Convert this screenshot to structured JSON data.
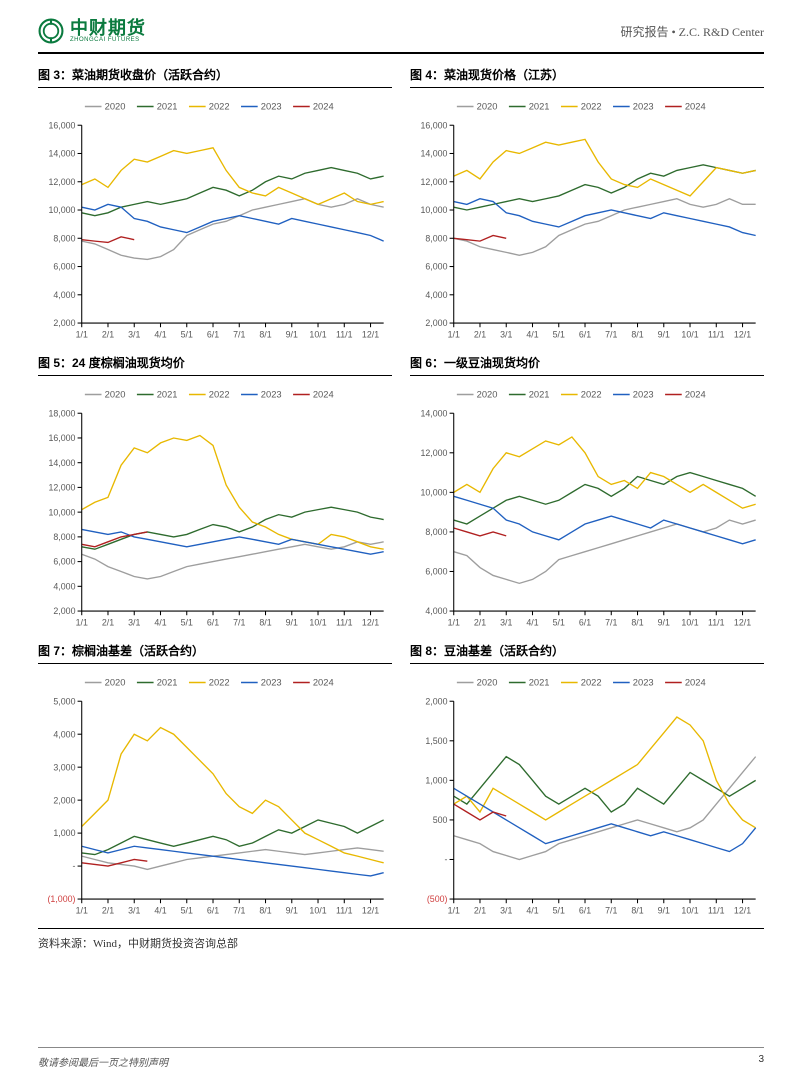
{
  "header": {
    "logo_cn": "中财期货",
    "logo_en": "ZHONGCAI FUTURES",
    "logo_color": "#0a7a3e",
    "right_text": "研究报告 • Z.C.  R&D Center"
  },
  "colors": {
    "line": {
      "2020": "#9e9e9e",
      "2021": "#2e6b2e",
      "2022": "#e8b800",
      "2023": "#2060c0",
      "2024": "#b02020"
    },
    "axis": "#000",
    "grid": "#e0e0e0",
    "tick": "#595959",
    "neg": "#d04040"
  },
  "legend_years": [
    "2020",
    "2021",
    "2022",
    "2023",
    "2024"
  ],
  "xticks": [
    "1/1",
    "2/1",
    "3/1",
    "4/1",
    "5/1",
    "6/1",
    "7/1",
    "8/1",
    "9/1",
    "10/1",
    "11/1",
    "12/1"
  ],
  "font": {
    "legend_size": 9,
    "tick_size": 8.5,
    "title_size": 12
  },
  "charts": [
    {
      "id": "c3",
      "title": "图 3：菜油期货收盘价（活跃合约）",
      "ylim": [
        2000,
        16000
      ],
      "ystep": 2000,
      "yfmt": "comma",
      "series": {
        "2020": [
          7800,
          7600,
          7200,
          6800,
          6600,
          6500,
          6700,
          7200,
          8200,
          8600,
          9000,
          9200,
          9600,
          10000,
          10200,
          10400,
          10600,
          10800,
          10400,
          10200,
          10400,
          10800,
          10400,
          10200
        ],
        "2021": [
          9800,
          9600,
          9800,
          10200,
          10400,
          10600,
          10400,
          10600,
          10800,
          11200,
          11600,
          11400,
          11000,
          11400,
          12000,
          12400,
          12200,
          12600,
          12800,
          13000,
          12800,
          12600,
          12200,
          12400
        ],
        "2022": [
          11800,
          12200,
          11600,
          12800,
          13600,
          13400,
          13800,
          14200,
          14000,
          14200,
          14400,
          12800,
          11600,
          11200,
          11000,
          11600,
          11200,
          10800,
          10400,
          10800,
          11200,
          10600,
          10400,
          10600
        ],
        "2023": [
          10200,
          10000,
          10400,
          10200,
          9400,
          9200,
          8800,
          8600,
          8400,
          8800,
          9200,
          9400,
          9600,
          9400,
          9200,
          9000,
          9400,
          9200,
          9000,
          8800,
          8600,
          8400,
          8200,
          7800
        ],
        "2024": [
          7900,
          7800,
          7700,
          8100,
          7900
        ]
      }
    },
    {
      "id": "c4",
      "title": "图 4：菜油现货价格（江苏）",
      "ylim": [
        2000,
        16000
      ],
      "ystep": 2000,
      "yfmt": "comma",
      "series": {
        "2020": [
          8000,
          7800,
          7400,
          7200,
          7000,
          6800,
          7000,
          7400,
          8200,
          8600,
          9000,
          9200,
          9600,
          10000,
          10200,
          10400,
          10600,
          10800,
          10400,
          10200,
          10400,
          10800,
          10400,
          10400
        ],
        "2021": [
          10200,
          10000,
          10200,
          10400,
          10600,
          10800,
          10600,
          10800,
          11000,
          11400,
          11800,
          11600,
          11200,
          11600,
          12200,
          12600,
          12400,
          12800,
          13000,
          13200,
          13000,
          12800,
          12600,
          12800
        ],
        "2022": [
          12400,
          12800,
          12200,
          13400,
          14200,
          14000,
          14400,
          14800,
          14600,
          14800,
          15000,
          13400,
          12200,
          11800,
          11600,
          12200,
          11800,
          11400,
          11000,
          12000,
          13000,
          12800,
          12600,
          12800
        ],
        "2023": [
          10600,
          10400,
          10800,
          10600,
          9800,
          9600,
          9200,
          9000,
          8800,
          9200,
          9600,
          9800,
          10000,
          9800,
          9600,
          9400,
          9800,
          9600,
          9400,
          9200,
          9000,
          8800,
          8400,
          8200
        ],
        "2024": [
          8000,
          7900,
          7800,
          8200,
          8000
        ]
      }
    },
    {
      "id": "c5",
      "title": "图 5：24 度棕榈油现货均价",
      "ylim": [
        2000,
        18000
      ],
      "ystep": 2000,
      "yfmt": "comma",
      "series": {
        "2020": [
          6600,
          6200,
          5600,
          5200,
          4800,
          4600,
          4800,
          5200,
          5600,
          5800,
          6000,
          6200,
          6400,
          6600,
          6800,
          7000,
          7200,
          7400,
          7200,
          7000,
          7200,
          7600,
          7400,
          7600
        ],
        "2021": [
          7200,
          7000,
          7400,
          7800,
          8200,
          8400,
          8200,
          8000,
          8200,
          8600,
          9000,
          8800,
          8400,
          8800,
          9400,
          9800,
          9600,
          10000,
          10200,
          10400,
          10200,
          10000,
          9600,
          9400
        ],
        "2022": [
          10200,
          10800,
          11200,
          13800,
          15200,
          14800,
          15600,
          16000,
          15800,
          16200,
          15400,
          12200,
          10400,
          9200,
          8800,
          8200,
          7800,
          7600,
          7400,
          8200,
          8000,
          7600,
          7200,
          7000
        ],
        "2023": [
          8600,
          8400,
          8200,
          8400,
          8000,
          7800,
          7600,
          7400,
          7200,
          7400,
          7600,
          7800,
          8000,
          7800,
          7600,
          7400,
          7800,
          7600,
          7400,
          7200,
          7000,
          6800,
          6600,
          6800
        ],
        "2024": [
          7400,
          7200,
          7600,
          8000,
          8200,
          8400
        ]
      }
    },
    {
      "id": "c6",
      "title": "图 6：一级豆油现货均价",
      "ylim": [
        4000,
        14000
      ],
      "ystep": 2000,
      "yfmt": "comma",
      "series": {
        "2020": [
          7000,
          6800,
          6200,
          5800,
          5600,
          5400,
          5600,
          6000,
          6600,
          6800,
          7000,
          7200,
          7400,
          7600,
          7800,
          8000,
          8200,
          8400,
          8200,
          8000,
          8200,
          8600,
          8400,
          8600
        ],
        "2021": [
          8600,
          8400,
          8800,
          9200,
          9600,
          9800,
          9600,
          9400,
          9600,
          10000,
          10400,
          10200,
          9800,
          10200,
          10800,
          10600,
          10400,
          10800,
          11000,
          10800,
          10600,
          10400,
          10200,
          9800
        ],
        "2022": [
          10000,
          10400,
          10000,
          11200,
          12000,
          11800,
          12200,
          12600,
          12400,
          12800,
          12000,
          10800,
          10400,
          10600,
          10200,
          11000,
          10800,
          10400,
          10000,
          10400,
          10000,
          9600,
          9200,
          9400
        ],
        "2023": [
          9800,
          9600,
          9400,
          9200,
          8600,
          8400,
          8000,
          7800,
          7600,
          8000,
          8400,
          8600,
          8800,
          8600,
          8400,
          8200,
          8600,
          8400,
          8200,
          8000,
          7800,
          7600,
          7400,
          7600
        ],
        "2024": [
          8200,
          8000,
          7800,
          8000,
          7800
        ]
      }
    },
    {
      "id": "c7",
      "title": "图 7：棕榈油基差（活跃合约）",
      "ylim": [
        -1000,
        5000
      ],
      "ystep": 1000,
      "yfmt": "paren",
      "series": {
        "2020": [
          300,
          200,
          100,
          50,
          0,
          -100,
          0,
          100,
          200,
          250,
          300,
          350,
          400,
          450,
          500,
          450,
          400,
          350,
          400,
          450,
          500,
          550,
          500,
          450
        ],
        "2021": [
          400,
          350,
          500,
          700,
          900,
          800,
          700,
          600,
          700,
          800,
          900,
          800,
          600,
          700,
          900,
          1100,
          1000,
          1200,
          1400,
          1300,
          1200,
          1000,
          1200,
          1400
        ],
        "2022": [
          1200,
          1600,
          2000,
          3400,
          4000,
          3800,
          4200,
          4000,
          3600,
          3200,
          2800,
          2200,
          1800,
          1600,
          2000,
          1800,
          1400,
          1000,
          800,
          600,
          400,
          300,
          200,
          100
        ],
        "2023": [
          600,
          500,
          400,
          500,
          600,
          550,
          500,
          450,
          400,
          350,
          300,
          250,
          200,
          150,
          100,
          50,
          0,
          -50,
          -100,
          -150,
          -200,
          -250,
          -300,
          -200
        ],
        "2024": [
          100,
          50,
          0,
          100,
          200,
          150
        ]
      }
    },
    {
      "id": "c8",
      "title": "图 8：豆油基差（活跃合约）",
      "ylim": [
        -500,
        2000
      ],
      "ystep": 500,
      "yfmt": "paren",
      "series": {
        "2020": [
          300,
          250,
          200,
          100,
          50,
          0,
          50,
          100,
          200,
          250,
          300,
          350,
          400,
          450,
          500,
          450,
          400,
          350,
          400,
          500,
          700,
          900,
          1100,
          1300
        ],
        "2021": [
          800,
          700,
          900,
          1100,
          1300,
          1200,
          1000,
          800,
          700,
          800,
          900,
          800,
          600,
          700,
          900,
          800,
          700,
          900,
          1100,
          1000,
          900,
          800,
          900,
          1000
        ],
        "2022": [
          700,
          800,
          600,
          900,
          800,
          700,
          600,
          500,
          600,
          700,
          800,
          900,
          1000,
          1100,
          1200,
          1400,
          1600,
          1800,
          1700,
          1500,
          1000,
          700,
          500,
          400
        ],
        "2023": [
          900,
          800,
          700,
          600,
          500,
          400,
          300,
          200,
          250,
          300,
          350,
          400,
          450,
          400,
          350,
          300,
          350,
          300,
          250,
          200,
          150,
          100,
          200,
          400
        ],
        "2024": [
          700,
          600,
          500,
          600,
          550
        ]
      }
    }
  ],
  "source": "资料来源：Wind，中财期货投资咨询总部",
  "footer": {
    "left": "敬请参阅最后一页之特别声明",
    "page": "3"
  }
}
